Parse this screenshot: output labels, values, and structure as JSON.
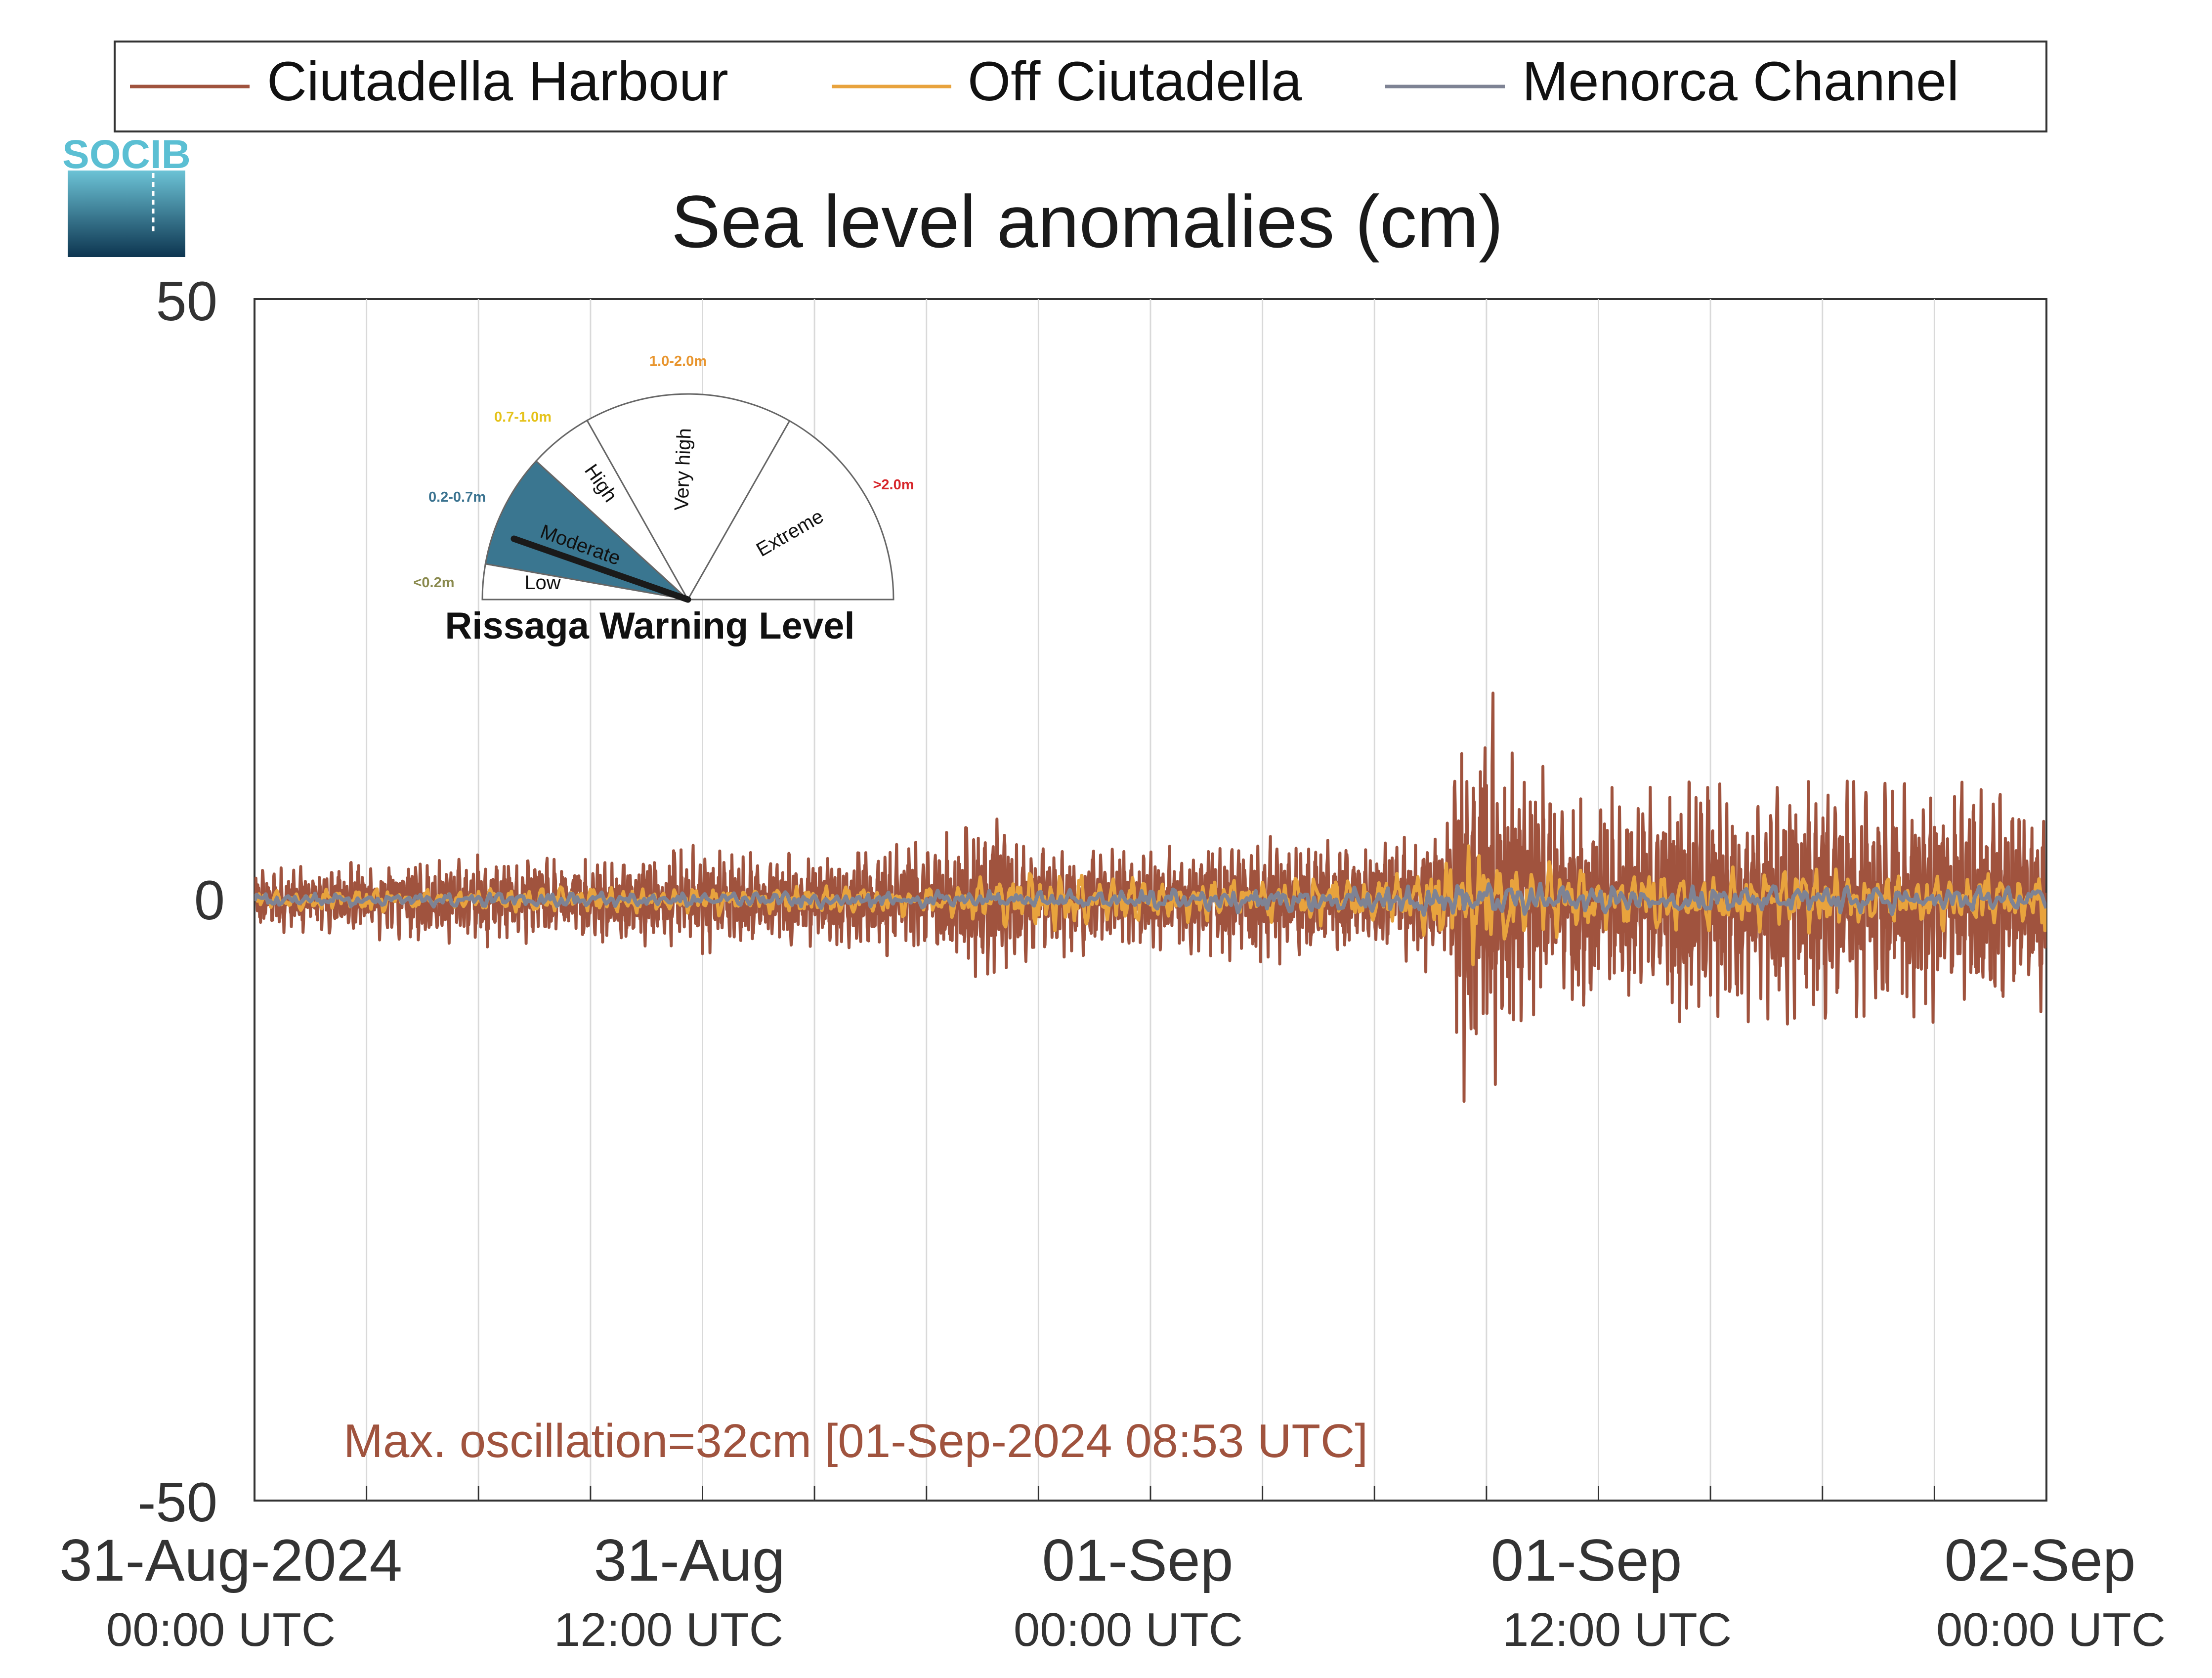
{
  "chart_data": {
    "type": "line",
    "title": "Sea level anomalies (cm)",
    "xlabel": "",
    "ylabel": "",
    "ylim": [
      -50,
      50
    ],
    "y_ticks": [
      "50",
      "0",
      "-50"
    ],
    "x_range_hours": [
      0,
      48
    ],
    "x_ticks": [
      {
        "date": "31-Aug-2024",
        "time": "00:00 UTC",
        "hour": 0
      },
      {
        "date": "31-Aug",
        "time": "12:00 UTC",
        "hour": 12
      },
      {
        "date": "01-Sep",
        "time": "00:00 UTC",
        "hour": 24
      },
      {
        "date": "01-Sep",
        "time": "12:00 UTC",
        "hour": 36
      },
      {
        "date": "02-Sep",
        "time": "00:00 UTC",
        "hour": 48
      }
    ],
    "grid": true,
    "legend_position": "top",
    "series": [
      {
        "name": "Ciutadella Harbour",
        "color": "#a0533e",
        "envelope": [
          [
            0,
            3
          ],
          [
            6,
            4
          ],
          [
            9,
            4
          ],
          [
            12,
            5
          ],
          [
            15,
            4
          ],
          [
            18,
            6
          ],
          [
            20,
            8
          ],
          [
            21,
            5
          ],
          [
            24,
            5
          ],
          [
            25,
            5
          ],
          [
            27,
            6
          ],
          [
            30,
            5
          ],
          [
            31,
            6
          ],
          [
            32,
            8
          ],
          [
            32.5,
            22
          ],
          [
            33,
            20
          ],
          [
            34,
            12
          ],
          [
            36,
            10
          ],
          [
            40,
            12
          ],
          [
            44,
            11
          ],
          [
            48,
            10
          ]
        ]
      },
      {
        "name": "Off Ciutadella",
        "color": "#e8a33d",
        "envelope": [
          [
            0,
            1
          ],
          [
            18,
            1.5
          ],
          [
            21,
            3
          ],
          [
            24,
            2
          ],
          [
            31,
            2.5
          ],
          [
            32.5,
            6
          ],
          [
            34,
            4
          ],
          [
            36,
            3
          ],
          [
            48,
            3
          ]
        ]
      },
      {
        "name": "Menorca Channel",
        "color": "#7e8394",
        "envelope": [
          [
            0,
            0.6
          ],
          [
            20,
            0.8
          ],
          [
            24,
            1
          ],
          [
            32,
            1.5
          ],
          [
            34,
            1.5
          ],
          [
            48,
            1.2
          ]
        ]
      }
    ],
    "annotation": "Max. oscillation=32cm [01-Sep-2024 08:53 UTC]"
  },
  "logo": {
    "text": "SOCIB"
  },
  "gauge": {
    "title": "Rissaga Warning Level",
    "current_level": "Moderate",
    "levels": [
      {
        "name": "Low",
        "range": "<0.2m",
        "color": "#8a8a4e"
      },
      {
        "name": "Moderate",
        "range": "0.2-0.7m",
        "color": "#3b7390"
      },
      {
        "name": "High",
        "range": "0.7-1.0m",
        "color": "#e5c21a"
      },
      {
        "name": "Very high",
        "range": "1.0-2.0m",
        "color": "#e8952e"
      },
      {
        "name": "Extreme",
        "range": ">2.0m",
        "color": "#d7262b"
      }
    ]
  }
}
